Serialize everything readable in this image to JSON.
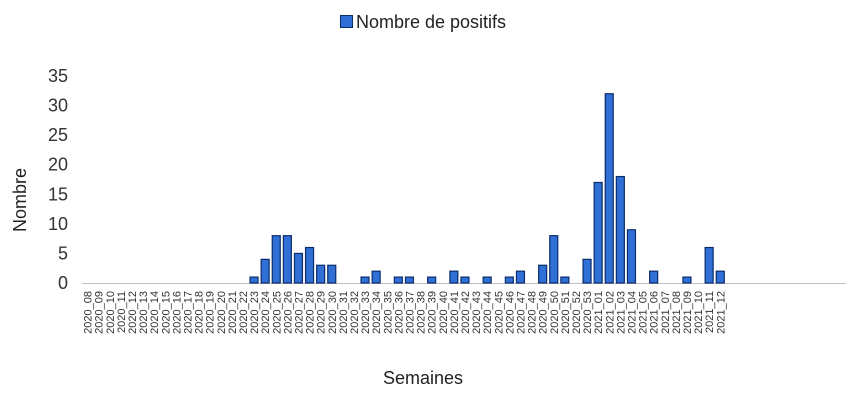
{
  "chart_data": {
    "type": "bar",
    "xlabel": "Semaines",
    "ylabel": "Nombre",
    "ylim": [
      0,
      35
    ],
    "yticks": [
      0,
      5,
      10,
      15,
      20,
      25,
      30,
      35
    ],
    "grid": false,
    "legend_position": "top-center",
    "colors": {
      "bar_fill": "#2f6fd6",
      "bar_stroke": "#0b2d6b",
      "axis": "#bfbfbf"
    },
    "categories": [
      "2020_08",
      "2020_09",
      "2020_10",
      "2020_11",
      "2020_12",
      "2020_13",
      "2020_14",
      "2020_15",
      "2020_16",
      "2020_17",
      "2020_18",
      "2020_19",
      "2020_20",
      "2020_21",
      "2020_22",
      "2020_23",
      "2020_24",
      "2020_25",
      "2020_26",
      "2020_27",
      "2020_28",
      "2020_29",
      "2020_30",
      "2020_31",
      "2020_32",
      "2020_33",
      "2020_34",
      "2020_35",
      "2020_36",
      "2020_37",
      "2020_38",
      "2020_39",
      "2020_40",
      "2020_41",
      "2020_42",
      "2020_43",
      "2020_44",
      "2020_45",
      "2020_46",
      "2020_47",
      "2020_48",
      "2020_49",
      "2020_50",
      "2020_51",
      "2020_52",
      "2020_53",
      "2021_01",
      "2021_02",
      "2021_03",
      "2021_04",
      "2021_05",
      "2021_06",
      "2021_07",
      "2021_08",
      "2021_09",
      "2021_10",
      "2021_11",
      "2021_12"
    ],
    "series": [
      {
        "name": "Nombre de positifs",
        "values": [
          0,
          0,
          0,
          0,
          0,
          0,
          0,
          0,
          0,
          0,
          0,
          0,
          0,
          0,
          0,
          1,
          4,
          8,
          8,
          5,
          6,
          3,
          3,
          0,
          0,
          1,
          2,
          0,
          1,
          1,
          0,
          1,
          0,
          2,
          1,
          0,
          1,
          0,
          1,
          2,
          0,
          3,
          8,
          1,
          0,
          4,
          17,
          32,
          18,
          9,
          0,
          2,
          0,
          0,
          1,
          0,
          6,
          2
        ]
      }
    ]
  }
}
